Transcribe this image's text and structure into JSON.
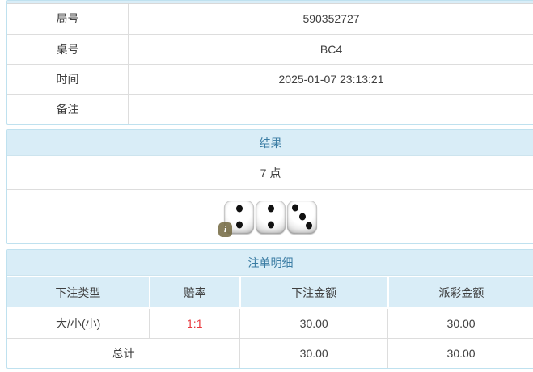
{
  "colors": {
    "panel_border": "#bfe1ef",
    "header_bg": "#d9edf7",
    "header_text": "#3a7ca3",
    "divider": "#dddddd",
    "odds_red": "#e8383d",
    "text": "#3f3f3f"
  },
  "info_table": {
    "rows": [
      {
        "label": "局号",
        "value": "590352727"
      },
      {
        "label": "桌号",
        "value": "BC4"
      },
      {
        "label": "时间",
        "value": "2025-01-07 23:13:21"
      },
      {
        "label": "备注",
        "value": ""
      }
    ]
  },
  "result_panel": {
    "title": "结果",
    "points": "7 点",
    "dice": [
      2,
      2,
      3
    ],
    "info_icon_label": "i"
  },
  "bet_panel": {
    "title": "注单明细",
    "columns": [
      "下注类型",
      "赔率",
      "下注金额",
      "派彩金额"
    ],
    "rows": [
      {
        "bet_type": "大/小(小)",
        "odds": "1:1",
        "bet_amount": "30.00",
        "payout_amount": "30.00"
      }
    ],
    "total_row": {
      "label": "总计",
      "bet_amount": "30.00",
      "payout_amount": "30.00"
    }
  }
}
